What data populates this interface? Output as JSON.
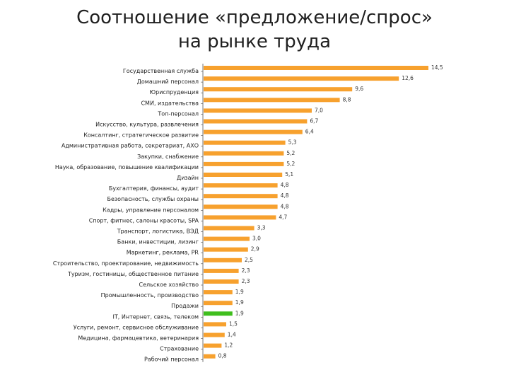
{
  "slide": {
    "title_line1": "Соотношение «предложение/спрос»",
    "title_line2": "на рынке труда"
  },
  "colors": {
    "bar": "#F7A12E",
    "highlight": "#3FBE1D",
    "axis": "#555555"
  },
  "chart_data": {
    "type": "bar",
    "orientation": "horizontal",
    "title": "Соотношение «предложение/спрос» на рынке труда",
    "xlabel": "",
    "ylabel": "",
    "xlim": [
      0,
      14.5
    ],
    "highlight_category": "IT, Интернет, связь, телеком",
    "categories": [
      "Государственная служба",
      "Домашний персонал",
      "Юриспруденция",
      "СМИ, издательства",
      "Топ-персонал",
      "Искусство, культура, развлечения",
      "Консалтинг, стратегическое развитие",
      "Административная работа, секретариат, АХО",
      "Закупки, снабжение",
      "Наука, образование, повышение квалификации",
      "Дизайн",
      "Бухгалтерия, финансы, аудит",
      "Безопасность, службы охраны",
      "Кадры, управление персоналом",
      "Спорт, фитнес, салоны красоты, SPA",
      "Транспорт, логистика, ВЭД",
      "Банки, инвестиции, лизинг",
      "Маркетинг, реклама, PR",
      "Строительство, проектирование, недвижимость",
      "Туризм, гостиницы, общественное питание",
      "Сельское хозяйство",
      "Промышленность, производство",
      "Продажи",
      "IT, Интернет, связь, телеком",
      "Услуги, ремонт, сервисное обслуживание",
      "Медицина, фармацевтика, ветеринария",
      "Страхование",
      "Рабочий персонал"
    ],
    "values": [
      14.5,
      12.6,
      9.6,
      8.8,
      7.0,
      6.7,
      6.4,
      5.3,
      5.2,
      5.2,
      5.1,
      4.8,
      4.8,
      4.8,
      4.7,
      3.3,
      3.0,
      2.9,
      2.5,
      2.3,
      2.3,
      1.9,
      1.9,
      1.9,
      1.5,
      1.4,
      1.2,
      0.8
    ],
    "value_labels": [
      "14,5",
      "12,6",
      "9,6",
      "8,8",
      "7,0",
      "6,7",
      "6,4",
      "5,3",
      "5,2",
      "5,2",
      "5,1",
      "4,8",
      "4,8",
      "4,8",
      "4,7",
      "3,3",
      "3,0",
      "2,9",
      "2,5",
      "2,3",
      "2,3",
      "1,9",
      "1,9",
      "1,9",
      "1,5",
      "1,4",
      "1,2",
      "0,8"
    ]
  }
}
